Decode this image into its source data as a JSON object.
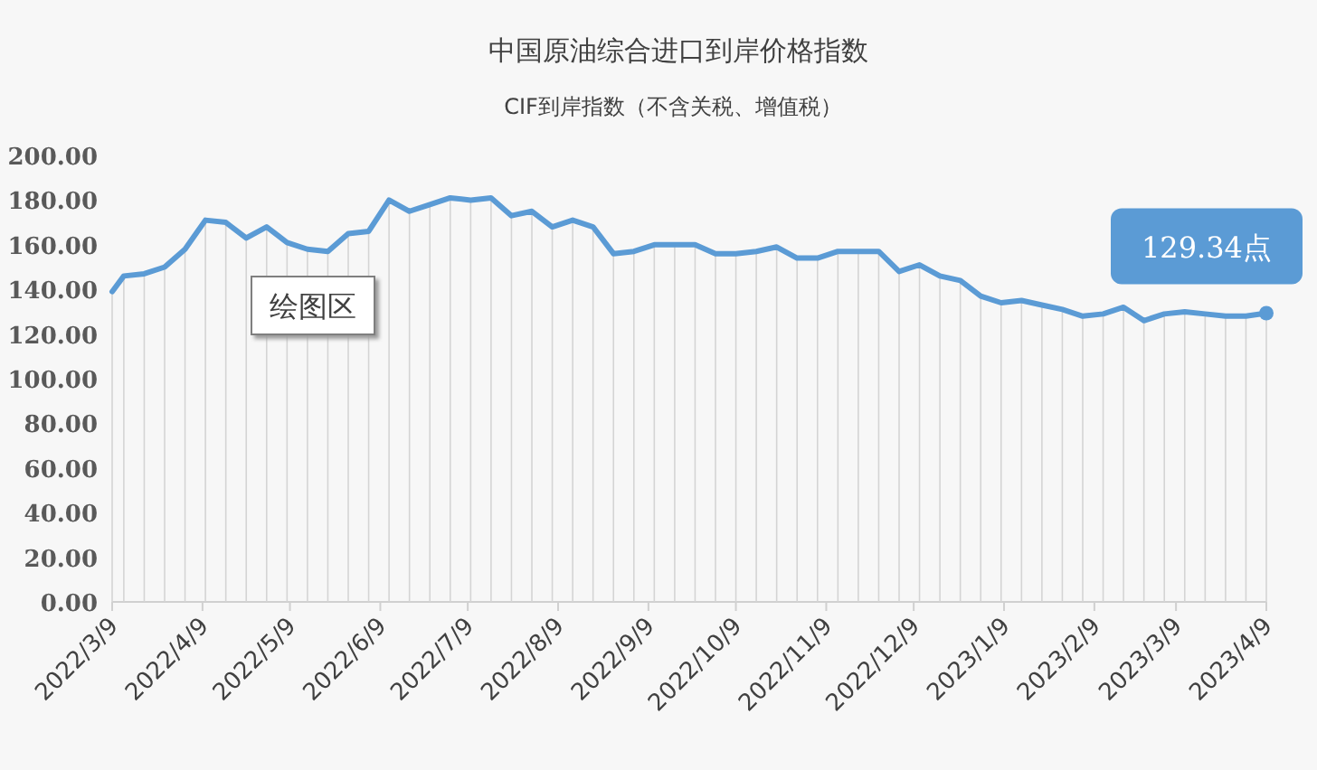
{
  "chart_data": {
    "type": "line",
    "title": "中国原油综合进口到岸价格指数",
    "subtitle": "CIF到岸指数（不含关税、增值税）",
    "x": [
      "2022-03-09",
      "2022-03-13",
      "2022-03-20",
      "2022-03-27",
      "2022-04-03",
      "2022-04-10",
      "2022-04-17",
      "2022-04-24",
      "2022-05-01",
      "2022-05-08",
      "2022-05-15",
      "2022-05-22",
      "2022-05-29",
      "2022-06-05",
      "2022-06-12",
      "2022-06-19",
      "2022-06-26",
      "2022-07-03",
      "2022-07-10",
      "2022-07-17",
      "2022-07-24",
      "2022-07-31",
      "2022-08-07",
      "2022-08-14",
      "2022-08-21",
      "2022-08-28",
      "2022-09-04",
      "2022-09-11",
      "2022-09-18",
      "2022-09-25",
      "2022-10-02",
      "2022-10-09",
      "2022-10-16",
      "2022-10-23",
      "2022-10-30",
      "2022-11-06",
      "2022-11-13",
      "2022-11-20",
      "2022-11-27",
      "2022-12-04",
      "2022-12-11",
      "2022-12-18",
      "2022-12-25",
      "2023-01-01",
      "2023-01-08",
      "2023-01-15",
      "2023-01-22",
      "2023-01-29",
      "2023-02-05",
      "2023-02-12",
      "2023-02-19",
      "2023-02-26",
      "2023-03-05",
      "2023-03-12",
      "2023-03-19",
      "2023-03-26",
      "2023-04-02",
      "2023-04-09"
    ],
    "series": [
      {
        "type": "bar",
        "color": "#d4d4d4",
        "values": [
          139,
          146,
          147,
          150,
          158,
          171,
          170,
          163,
          168,
          161,
          158,
          157,
          165,
          166,
          180,
          175,
          178,
          181,
          180,
          181,
          173,
          175,
          168,
          171,
          168,
          156,
          157,
          160,
          160,
          160,
          156,
          156,
          157,
          159,
          154,
          154,
          157,
          157,
          157,
          148,
          151,
          146,
          144,
          137,
          134,
          135,
          133,
          131,
          128,
          129,
          132,
          126,
          129,
          130,
          129,
          128,
          128,
          129.34
        ]
      },
      {
        "type": "line",
        "color": "#5b9bd5",
        "values": [
          139,
          146,
          147,
          150,
          158,
          171,
          170,
          163,
          168,
          161,
          158,
          157,
          165,
          166,
          180,
          175,
          178,
          181,
          180,
          181,
          173,
          175,
          168,
          171,
          168,
          156,
          157,
          160,
          160,
          160,
          156,
          156,
          157,
          159,
          154,
          154,
          157,
          157,
          157,
          148,
          151,
          146,
          144,
          137,
          134,
          135,
          133,
          131,
          128,
          129,
          132,
          126,
          129,
          130,
          129,
          128,
          128,
          129.34
        ]
      }
    ],
    "xlim": [
      "2022-03-09",
      "2023-04-09"
    ],
    "xticks": [
      {
        "value": "2022-03-09",
        "label": "2022/3/9"
      },
      {
        "value": "2022-04-09",
        "label": "2022/4/9"
      },
      {
        "value": "2022-05-09",
        "label": "2022/5/9"
      },
      {
        "value": "2022-06-09",
        "label": "2022/6/9"
      },
      {
        "value": "2022-07-09",
        "label": "2022/7/9"
      },
      {
        "value": "2022-08-09",
        "label": "2022/8/9"
      },
      {
        "value": "2022-09-09",
        "label": "2022/9/9"
      },
      {
        "value": "2022-10-09",
        "label": "2022/10/9"
      },
      {
        "value": "2022-11-09",
        "label": "2022/11/9"
      },
      {
        "value": "2022-12-09",
        "label": "2022/12/9"
      },
      {
        "value": "2023-01-09",
        "label": "2023/1/9"
      },
      {
        "value": "2023-02-09",
        "label": "2023/2/9"
      },
      {
        "value": "2023-03-09",
        "label": "2023/3/9"
      },
      {
        "value": "2023-04-09",
        "label": "2023/4/9"
      }
    ],
    "ylim": [
      0,
      200
    ],
    "yticks": [
      {
        "value": 0,
        "label": "0.00"
      },
      {
        "value": 20,
        "label": "20.00"
      },
      {
        "value": 40,
        "label": "40.00"
      },
      {
        "value": 60,
        "label": "60.00"
      },
      {
        "value": 80,
        "label": "80.00"
      },
      {
        "value": 100,
        "label": "100.00"
      },
      {
        "value": 120,
        "label": "120.00"
      },
      {
        "value": 140,
        "label": "140.00"
      },
      {
        "value": 160,
        "label": "160.00"
      },
      {
        "value": 180,
        "label": "180.00"
      },
      {
        "value": 200,
        "label": "200.00"
      }
    ],
    "annotations": [
      {
        "text": "129.34点",
        "x": "2023-04-09",
        "y": 129.34
      },
      "绘图区"
    ]
  }
}
